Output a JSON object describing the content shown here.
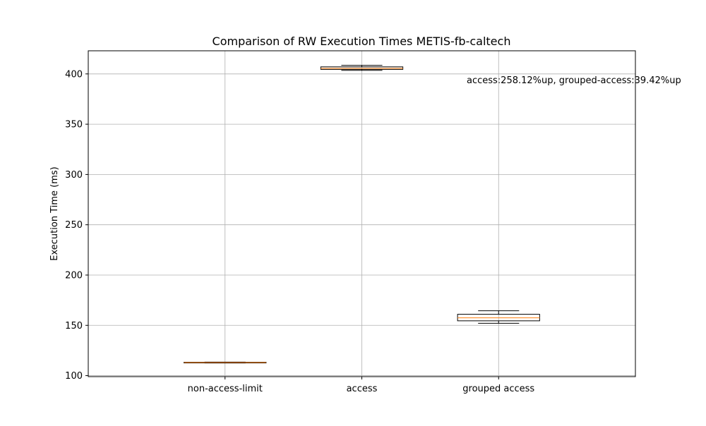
{
  "chart_data": {
    "type": "box",
    "title": "Comparison of RW Execution Times METIS-fb-caltech",
    "xlabel": "",
    "ylabel": "Execution Time (ms)",
    "ylim": [
      99,
      423
    ],
    "yticks": [
      100,
      150,
      200,
      250,
      300,
      350,
      400
    ],
    "grid": true,
    "categories": [
      "non-access-limit",
      "access",
      "grouped access"
    ],
    "boxes": [
      {
        "category": "non-access-limit",
        "whisker_low": 112.6,
        "q1": 112.8,
        "median": 113.0,
        "q3": 113.3,
        "whisker_high": 113.5
      },
      {
        "category": "access",
        "whisker_low": 403.5,
        "q1": 404.5,
        "median": 405.5,
        "q3": 407.0,
        "whisker_high": 408.5
      },
      {
        "category": "grouped access",
        "whisker_low": 152.0,
        "q1": 154.5,
        "median": 157.5,
        "q3": 161.0,
        "whisker_high": 164.5
      }
    ],
    "annotation": "access:258.12%up, grouped-access:39.42%up",
    "colors": {
      "box_edge": "#000000",
      "median": "#ff7f0e",
      "grid": "#b0b0b0"
    }
  }
}
